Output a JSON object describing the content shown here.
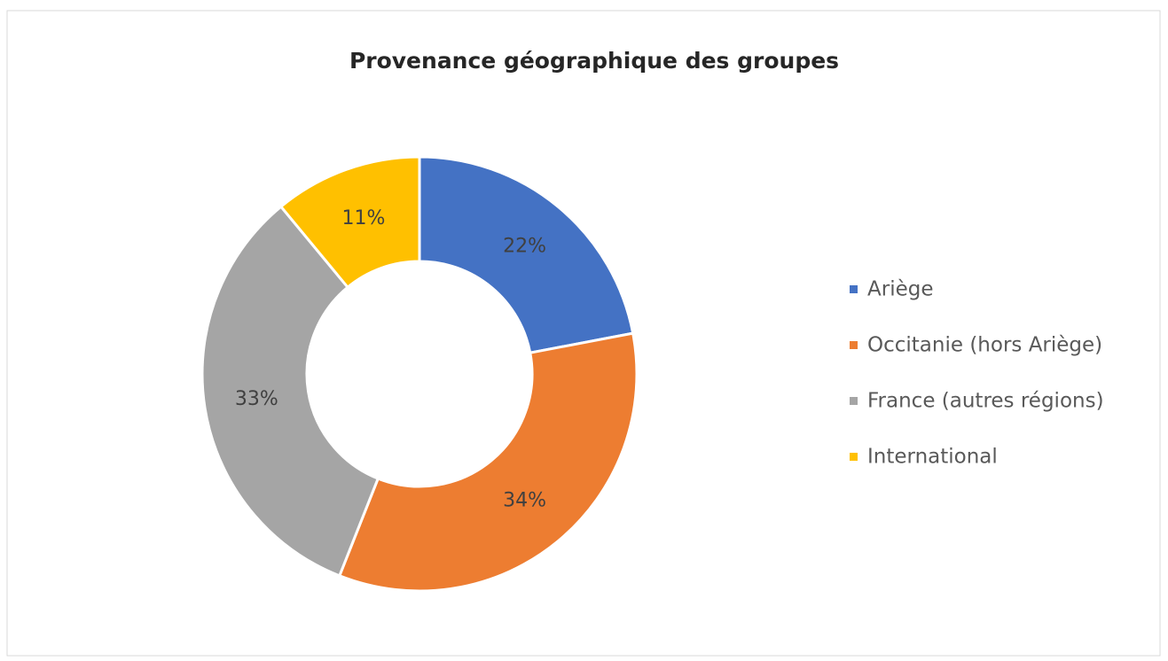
{
  "chart_data": {
    "type": "doughnut",
    "title": "Provenance géographique  des groupes",
    "categories": [
      "Ariège",
      "Occitanie (hors Ariège)",
      "France (autres régions)",
      "International"
    ],
    "values": [
      22,
      34,
      33,
      11
    ],
    "value_labels": [
      "22%",
      "34%",
      "33%",
      "11%"
    ],
    "colors": [
      "#4472c4",
      "#ed7d31",
      "#a5a5a5",
      "#ffc000"
    ],
    "legend": "right"
  }
}
